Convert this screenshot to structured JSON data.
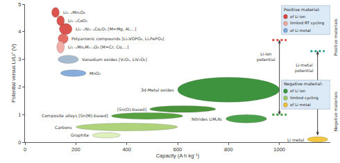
{
  "chart_data": {
    "type": "ellipse",
    "xlabel": "Capacity (A h kg⁻¹)",
    "ylabel": "Potential versus Li/Li⁺ (V)",
    "xlim": [
      0,
      1200
    ],
    "xticks": [
      0,
      200,
      400,
      600,
      800,
      1000
    ],
    "ylim": [
      0,
      5
    ],
    "yticks": [
      0,
      1,
      2,
      3,
      4,
      5
    ],
    "grid": false,
    "series": [
      {
        "name": "Positive materials",
        "legend_title": "Positive material:",
        "classes": [
          {
            "label": "of Li ion",
            "color": "#d9473f"
          },
          {
            "label": "limited RT cycling",
            "color": "#f0a8a0"
          },
          {
            "label": "of Li metal",
            "color": "#7fa7d9"
          }
        ],
        "materials": [
          {
            "label": "Li₁₋ₓMn₂O₄",
            "x": 120,
            "y": 4.7,
            "x_halfwidth": 15,
            "y_halfwidth": 0.18,
            "color": "#d9473f"
          },
          {
            "label": "Li₁₋ₓCoO₂",
            "x": 140,
            "y": 4.4,
            "x_halfwidth": 15,
            "y_halfwidth": 0.18,
            "color": "#d9473f"
          },
          {
            "label": "Li₁₋ₓNi₁₋ᵧCoᵧO₂ [M=Mg, Al,...]",
            "x": 160,
            "y": 4.1,
            "x_halfwidth": 25,
            "y_halfwidth": 0.2,
            "color": "#d9473f"
          },
          {
            "label": "Polyanionic compounds [LiₓVOPO₄, LiₓFePO₄]",
            "x": 150,
            "y": 3.75,
            "x_halfwidth": 20,
            "y_halfwidth": 0.18,
            "color": "#e0625a"
          },
          {
            "label": "Li₁₋ₓMnᵧM₁₋ᵧO₄ [M=Cr, Co,...]",
            "x": 140,
            "y": 3.45,
            "x_halfwidth": 15,
            "y_halfwidth": 0.22,
            "color": "#f0a8a0"
          },
          {
            "label": "Vanadium oxides [V₂O₅, LiV₃O₈]",
            "x": 170,
            "y": 3.0,
            "x_halfwidth": 40,
            "y_halfwidth": 0.15,
            "color": "#9fb6cc"
          },
          {
            "label": "MnO₂",
            "x": 190,
            "y": 2.5,
            "x_halfwidth": 50,
            "y_halfwidth": 0.12,
            "color": "#7fa7d9"
          }
        ]
      },
      {
        "name": "Negative materials",
        "legend_title": "Negative material:",
        "classes": [
          {
            "label": "of Li ion",
            "color": "#3a9a3a"
          },
          {
            "label": "limited cycling",
            "color": "#9ccc65"
          },
          {
            "label": "of Li metal",
            "color": "#f2c230"
          }
        ],
        "materials": [
          {
            "label": "Graphite",
            "x": 320,
            "y": 0.25,
            "x_halfwidth": 55,
            "y_halfwidth": 0.1,
            "color": "#dcefb8"
          },
          {
            "label": "Carbons",
            "x": 400,
            "y": 0.55,
            "x_halfwidth": 200,
            "y_halfwidth": 0.14,
            "color": "#a8d070"
          },
          {
            "label": "Composite alloys [Sn(M)-based]",
            "x": 480,
            "y": 0.95,
            "x_halfwidth": 140,
            "y_halfwidth": 0.12,
            "color": "#4a9a30"
          },
          {
            "label": "[Sn(O)-based]",
            "x": 620,
            "y": 1.2,
            "x_halfwidth": 130,
            "y_halfwidth": 0.12,
            "color": "#3a8a2a"
          },
          {
            "label": "3d-Metal oxides",
            "x": 800,
            "y": 1.9,
            "x_halfwidth": 200,
            "y_halfwidth": 0.45,
            "color": "#2e8b2e"
          },
          {
            "label": "Nitrides LiMᵧN₂",
            "x": 870,
            "y": 0.85,
            "x_halfwidth": 80,
            "y_halfwidth": 0.15,
            "color": "#3c9a3c"
          },
          {
            "label": "Li metal",
            "x": 1150,
            "y": 0.1,
            "x_halfwidth": 40,
            "y_halfwidth": 0.1,
            "color": "#f2c230"
          }
        ]
      }
    ],
    "potentials": [
      {
        "label": "Li-ion potential",
        "x": 1000,
        "high": 3.7,
        "low": 1.0,
        "high_color": "#d9473f",
        "low_color": "#3a9a3a"
      },
      {
        "label": "Li-metal potential",
        "x": 1150,
        "high": 3.3,
        "low": 0.25,
        "high_color": "#2a9d8f"
      }
    ]
  }
}
